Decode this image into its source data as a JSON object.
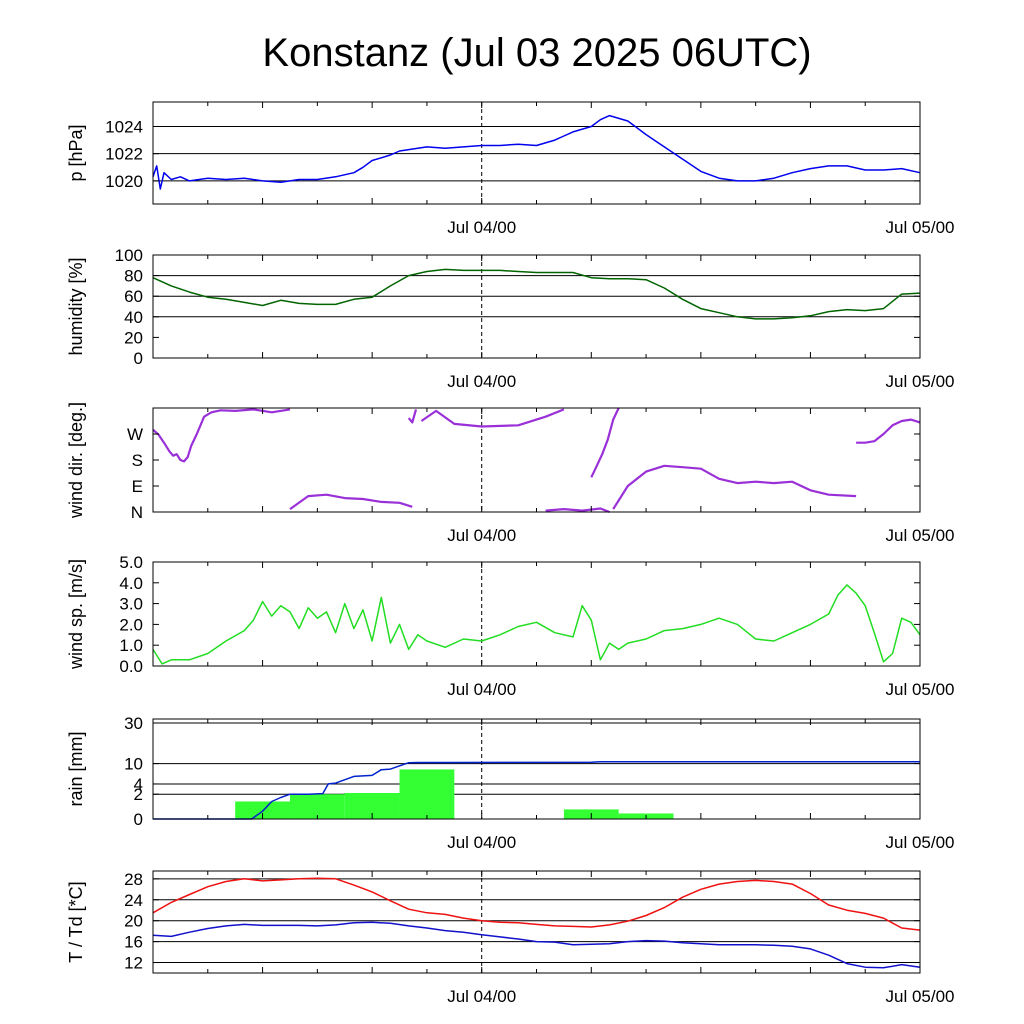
{
  "title": "Konstanz (Jul 03 2025 06UTC)",
  "x_tick_labels": [
    "Jul 04/00",
    "Jul 05/00"
  ],
  "colors": {
    "pressure": "#0000ee",
    "humidity": "#006400",
    "wind_dir": "#9a30d8",
    "wind_speed": "#22dd22",
    "rain_bar": "#33ff33",
    "rain_line": "#0022cc",
    "temperature": "#ee1111",
    "dewpoint": "#1111cc"
  },
  "chart_data": [
    {
      "type": "line",
      "name": "pressure",
      "ylabel": "p [hPa]",
      "x_unit": "hours since Jul 03 06UTC",
      "xlim": [
        0,
        42
      ],
      "ylim": [
        1018.3,
        1025.8
      ],
      "yticks": [
        1020,
        1022,
        1024
      ],
      "ytick_labels": [
        "1020",
        "1022",
        "1024"
      ],
      "grid": [
        1020,
        1022,
        1024
      ],
      "series": [
        {
          "x": [
            0,
            0.2,
            0.4,
            0.6,
            1,
            1.5,
            2,
            3,
            4,
            5,
            6,
            7,
            8,
            9,
            10,
            11,
            11.5,
            12,
            12.5,
            13,
            13.5,
            14,
            15,
            16,
            17,
            18,
            19,
            20,
            21,
            22,
            22.5,
            23,
            24,
            24.5,
            25,
            26,
            27,
            28,
            29,
            30,
            31,
            32,
            33,
            34,
            35,
            36,
            37,
            38,
            39,
            40,
            41,
            42
          ],
          "y": [
            1020.3,
            1021.1,
            1019.4,
            1020.6,
            1020.1,
            1020.3,
            1020,
            1020.2,
            1020.1,
            1020.2,
            1020,
            1019.9,
            1020.1,
            1020.1,
            1020.3,
            1020.6,
            1021,
            1021.5,
            1021.7,
            1021.9,
            1022.2,
            1022.3,
            1022.5,
            1022.4,
            1022.5,
            1022.6,
            1022.6,
            1022.7,
            1022.6,
            1023,
            1023.3,
            1023.6,
            1024,
            1024.5,
            1024.8,
            1024.4,
            1023.4,
            1022.5,
            1021.6,
            1020.7,
            1020.2,
            1020,
            1020,
            1020.2,
            1020.6,
            1020.9,
            1021.1,
            1021.1,
            1020.8,
            1020.8,
            1020.9,
            1020.6
          ]
        }
      ]
    },
    {
      "type": "line",
      "name": "humidity",
      "ylabel": "humidity [%]",
      "xlim": [
        0,
        42
      ],
      "ylim": [
        0,
        100
      ],
      "yticks": [
        0,
        20,
        40,
        60,
        80,
        100
      ],
      "ytick_labels": [
        "0",
        "20",
        "40",
        "60",
        "80",
        "100"
      ],
      "grid": [
        40,
        60,
        80
      ],
      "series": [
        {
          "x": [
            0,
            1,
            2,
            3,
            4,
            5,
            6,
            7,
            8,
            9,
            10,
            11,
            12,
            13,
            14,
            15,
            16,
            17,
            18,
            19,
            20,
            21,
            22,
            23,
            24,
            25,
            26,
            27,
            28,
            29,
            30,
            31,
            32,
            33,
            34,
            35,
            36,
            37,
            38,
            39,
            40,
            41,
            42
          ],
          "y": [
            78,
            70,
            64,
            59,
            57,
            54,
            51,
            56,
            53,
            52,
            52,
            57,
            59,
            70,
            80,
            84,
            86,
            85,
            85,
            85,
            84,
            83,
            83,
            83,
            78,
            77,
            77,
            76,
            68,
            57,
            48,
            44,
            40,
            38,
            38,
            39,
            41,
            45,
            47,
            46,
            48,
            62,
            63
          ]
        }
      ]
    },
    {
      "type": "scatter",
      "name": "wind_dir",
      "ylabel": "wind dir. [deg.]",
      "xlim": [
        0,
        42
      ],
      "ylim": [
        0,
        360
      ],
      "yticks": [
        0,
        90,
        180,
        270
      ],
      "ytick_labels": [
        "N",
        "E",
        "S",
        "W"
      ],
      "segments": [
        {
          "x": [
            0,
            0.3,
            0.6,
            0.9,
            1.1,
            1.3,
            1.5,
            1.7,
            1.9,
            2.1,
            2.4,
            2.8,
            3.2,
            3.7,
            4.5,
            5.5,
            6.5,
            7.5
          ],
          "y": [
            285,
            268,
            240,
            210,
            195,
            200,
            180,
            175,
            190,
            230,
            270,
            330,
            345,
            352,
            350,
            355,
            345,
            355
          ]
        },
        {
          "x": [
            7.5,
            8.5,
            9.5,
            10.5,
            11.5,
            12.5,
            13.5,
            14.2
          ],
          "y": [
            10,
            55,
            60,
            48,
            45,
            35,
            32,
            18
          ]
        },
        {
          "x": [
            14,
            14.2,
            14.4
          ],
          "y": [
            325,
            310,
            355
          ]
        },
        {
          "x": [
            14.7,
            15.5,
            16.5,
            18,
            20,
            21.5,
            22.5
          ],
          "y": [
            315,
            350,
            305,
            296,
            300,
            330,
            355
          ]
        },
        {
          "x": [
            21.5,
            22.5,
            23.5,
            24.5,
            25
          ],
          "y": [
            5,
            10,
            5,
            12,
            0
          ]
        },
        {
          "x": [
            24,
            24.3,
            24.6,
            24.9,
            25.2,
            25.5
          ],
          "y": [
            120,
            160,
            200,
            250,
            320,
            360
          ]
        },
        {
          "x": [
            25.2,
            26,
            27,
            28,
            29,
            30,
            31,
            32,
            33,
            34,
            35,
            36,
            37,
            38.5
          ],
          "y": [
            10,
            90,
            140,
            160,
            155,
            150,
            115,
            100,
            105,
            100,
            105,
            75,
            60,
            55
          ]
        },
        {
          "x": [
            38.5,
            39,
            39.5,
            40,
            40.5,
            41,
            41.5,
            42
          ],
          "y": [
            240,
            240,
            245,
            270,
            300,
            315,
            320,
            310
          ]
        }
      ]
    },
    {
      "type": "line",
      "name": "wind_speed",
      "ylabel": "wind sp. [m/s]",
      "xlim": [
        0,
        42
      ],
      "ylim": [
        0,
        5
      ],
      "yticks": [
        0,
        1,
        2,
        3,
        4,
        5
      ],
      "ytick_labels": [
        "0.0",
        "1.0",
        "2.0",
        "3.0",
        "4.0",
        "5.0"
      ],
      "series": [
        {
          "x": [
            0,
            0.5,
            1,
            2,
            3,
            4,
            5,
            5.5,
            6,
            6.5,
            7,
            7.5,
            8,
            8.5,
            9,
            9.5,
            10,
            10.5,
            11,
            11.5,
            12,
            12.5,
            13,
            13.5,
            14,
            14.5,
            15,
            16,
            17,
            18,
            19,
            20,
            21,
            22,
            23,
            23.5,
            24,
            24.5,
            25,
            25.5,
            26,
            27,
            28,
            29,
            30,
            31,
            32,
            33,
            34,
            35,
            36,
            37,
            37.5,
            38,
            38.5,
            39,
            39.5,
            40,
            40.5,
            41,
            41.5,
            42
          ],
          "y": [
            0.8,
            0.1,
            0.3,
            0.3,
            0.6,
            1.2,
            1.7,
            2.2,
            3.1,
            2.4,
            2.9,
            2.6,
            1.8,
            2.8,
            2.3,
            2.6,
            1.6,
            3.0,
            1.8,
            2.7,
            1.2,
            3.3,
            1.1,
            2.0,
            0.8,
            1.5,
            1.2,
            0.9,
            1.3,
            1.2,
            1.5,
            1.9,
            2.1,
            1.6,
            1.4,
            2.9,
            2.2,
            0.3,
            1.1,
            0.8,
            1.1,
            1.3,
            1.7,
            1.8,
            2.0,
            2.3,
            2.0,
            1.3,
            1.2,
            1.6,
            2.0,
            2.5,
            3.4,
            3.9,
            3.5,
            2.9,
            1.6,
            0.2,
            0.6,
            2.3,
            2.1,
            1.5
          ]
        }
      ]
    },
    {
      "type": "bar",
      "name": "rain",
      "ylabel": "rain [mm]",
      "xlim": [
        0,
        42
      ],
      "yticks": [
        0,
        2,
        4,
        10,
        30
      ],
      "ytick_labels": [
        "0",
        "2",
        "4",
        "10",
        "30"
      ],
      "grid": [
        2,
        4,
        10,
        30
      ],
      "scale": "sqrt",
      "bars": [
        {
          "x0": 4.5,
          "x1": 7.5,
          "value": 1
        },
        {
          "x0": 7.5,
          "x1": 10.5,
          "value": 2
        },
        {
          "x0": 10.5,
          "x1": 13.5,
          "value": 2.2
        },
        {
          "x0": 13.5,
          "x1": 16.5,
          "value": 8
        },
        {
          "x0": 22.5,
          "x1": 25.5,
          "value": 0.3
        },
        {
          "x0": 25.5,
          "x1": 28.5,
          "value": 0.1
        }
      ],
      "series": [
        {
          "x": [
            0,
            4.5,
            5.4,
            6,
            6.5,
            7,
            7.5,
            8.5,
            9.3,
            9.6,
            10,
            11,
            12,
            12.5,
            13,
            14,
            14.5,
            16,
            24,
            24.5,
            33,
            42
          ],
          "y": [
            0,
            0,
            0,
            0.2,
            1,
            1.5,
            2,
            2,
            2.1,
            4,
            4.2,
            5.9,
            6.2,
            7.9,
            8.1,
            10.3,
            10.4,
            10.4,
            10.5,
            10.7,
            10.7,
            10.7
          ]
        }
      ]
    },
    {
      "type": "line",
      "name": "temperature",
      "ylabel": "T / Td [*C]",
      "xlim": [
        0,
        42
      ],
      "ylim": [
        10,
        29.5
      ],
      "yticks": [
        12,
        16,
        20,
        24,
        28
      ],
      "ytick_labels": [
        "12",
        "16",
        "20",
        "24",
        "28"
      ],
      "grid": [
        12,
        16,
        20,
        24,
        28
      ],
      "series": [
        {
          "x": [
            0,
            1,
            2,
            3,
            4,
            5,
            6,
            7,
            8,
            9,
            10,
            11,
            12,
            13,
            14,
            15,
            16,
            17,
            18,
            19,
            20,
            21,
            22,
            23,
            24,
            25,
            26,
            27,
            28,
            29,
            30,
            31,
            32,
            33,
            34,
            35,
            36,
            37,
            38,
            39,
            40,
            41,
            42
          ],
          "y": [
            21.5,
            23.5,
            25,
            26.5,
            27.5,
            28,
            27.6,
            27.8,
            28,
            28.1,
            28,
            26.8,
            25.5,
            23.8,
            22.2,
            21.5,
            21.2,
            20.5,
            20,
            19.7,
            19.6,
            19.3,
            19,
            18.9,
            18.8,
            19.2,
            19.9,
            21,
            22.5,
            24.5,
            26,
            27,
            27.5,
            27.7,
            27.5,
            27,
            25.2,
            23,
            22,
            21.4,
            20.5,
            18.6,
            18.2
          ]
        },
        {
          "x": [
            0,
            1,
            2,
            3,
            4,
            5,
            6,
            7,
            8,
            9,
            10,
            11,
            12,
            13,
            14,
            15,
            16,
            17,
            18,
            19,
            20,
            21,
            22,
            23,
            24,
            25,
            26,
            27,
            28,
            29,
            30,
            31,
            32,
            33,
            34,
            35,
            36,
            37,
            38,
            39,
            40,
            41,
            42
          ],
          "y": [
            17.2,
            17,
            17.8,
            18.5,
            19,
            19.3,
            19.1,
            19.1,
            19.1,
            19,
            19.2,
            19.6,
            19.7,
            19.5,
            19,
            18.6,
            18.1,
            17.8,
            17.3,
            16.9,
            16.5,
            16,
            15.9,
            15.4,
            15.5,
            15.6,
            16,
            16.2,
            16.1,
            15.8,
            15.6,
            15.4,
            15.4,
            15.4,
            15.3,
            15.1,
            14.6,
            13.4,
            11.8,
            11.1,
            11,
            11.6,
            11.1
          ]
        }
      ]
    }
  ]
}
